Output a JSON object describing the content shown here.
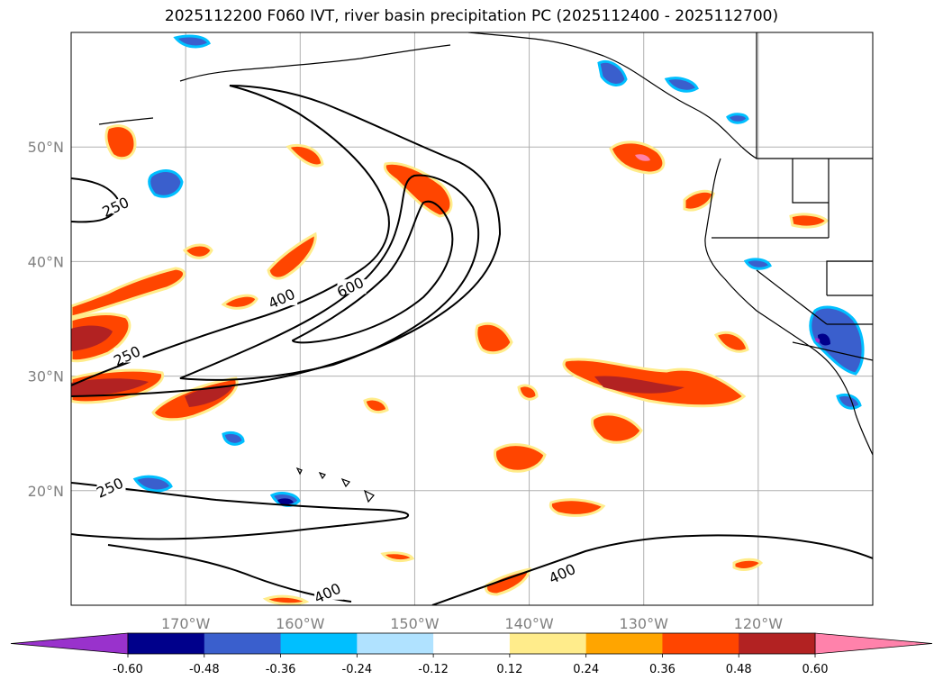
{
  "title": "2025112200 F060 IVT, river basin precipitation PC (2025112400 - 2025112700)",
  "map": {
    "lon_range": [
      -180,
      -110
    ],
    "lat_range": [
      10,
      60
    ],
    "lat_ticks": [
      {
        "value": 20,
        "label": "20°N"
      },
      {
        "value": 30,
        "label": "30°N"
      },
      {
        "value": 40,
        "label": "40°N"
      },
      {
        "value": 50,
        "label": "50°N"
      }
    ],
    "lon_ticks": [
      {
        "value": -170,
        "label": "170°W"
      },
      {
        "value": -160,
        "label": "160°W"
      },
      {
        "value": -150,
        "label": "150°W"
      },
      {
        "value": -140,
        "label": "140°W"
      },
      {
        "value": -130,
        "label": "130°W"
      },
      {
        "value": -120,
        "label": "120°W"
      }
    ],
    "grid": true,
    "ivt_contour_labels": [
      {
        "text": "250",
        "lon": -176.0,
        "lat": 44.5
      },
      {
        "text": "250",
        "lon": -175.0,
        "lat": 31.5
      },
      {
        "text": "250",
        "lon": -176.5,
        "lat": 20.0
      },
      {
        "text": "400",
        "lon": -161.5,
        "lat": 36.5
      },
      {
        "text": "400",
        "lon": -157.5,
        "lat": 10.8
      },
      {
        "text": "400",
        "lon": -137.0,
        "lat": 12.5
      },
      {
        "text": "600",
        "lon": -155.5,
        "lat": 37.5
      }
    ]
  },
  "colorbar": {
    "ticks": [
      "-0.60",
      "-0.48",
      "-0.36",
      "-0.24",
      "-0.12",
      "0.12",
      "0.24",
      "0.36",
      "0.48",
      "0.60"
    ],
    "colors": [
      "#9932cc",
      "#00008b",
      "#3a5fcd",
      "#00bfff",
      "#b0e2ff",
      "#ffffff",
      "#ffec8b",
      "#ffa500",
      "#ff4500",
      "#b22222",
      "#ff82ab"
    ],
    "extend": "both"
  }
}
